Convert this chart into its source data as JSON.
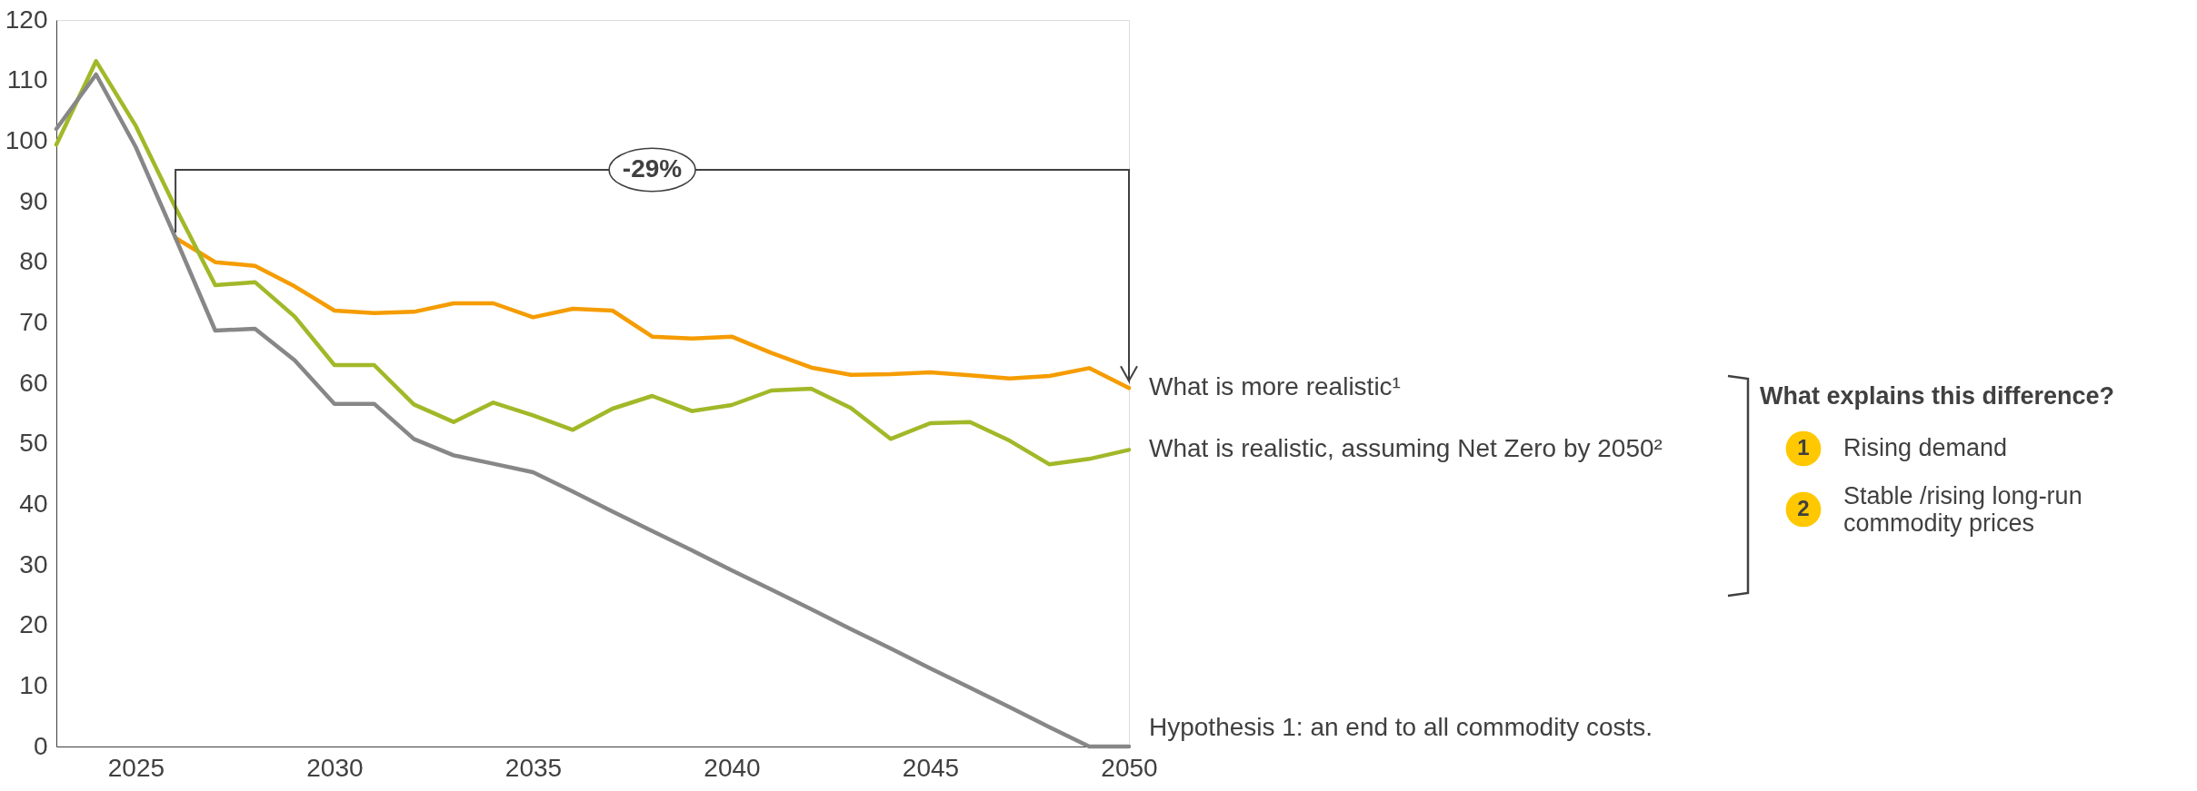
{
  "chart_data": {
    "type": "line",
    "xlim": [
      2023,
      2050
    ],
    "xticks": [
      2025,
      2030,
      2035,
      2040,
      2045,
      2050
    ],
    "ylim": [
      0,
      120
    ],
    "yticks": [
      0,
      10,
      20,
      30,
      40,
      50,
      60,
      70,
      80,
      90,
      100,
      110,
      120
    ],
    "grid": false,
    "legend": false,
    "marker": "none",
    "line_style": "solid",
    "series": [
      {
        "name": "What is more realistic¹",
        "color": "#f59c00",
        "x": [
          2026,
          2027,
          2028,
          2029,
          2030,
          2031,
          2032,
          2033,
          2034,
          2035,
          2036,
          2037,
          2038,
          2039,
          2040,
          2041,
          2042,
          2043,
          2044,
          2045,
          2046,
          2047,
          2048,
          2049,
          2050
        ],
        "values": [
          84,
          80,
          79.4,
          76,
          72,
          71.6,
          71.8,
          73.2,
          73.2,
          70.9,
          72.3,
          72,
          67.7,
          67.4,
          67.7,
          65,
          62.6,
          61.4,
          61.5,
          61.8,
          61.3,
          60.8,
          61.2,
          62.5,
          59.2
        ]
      },
      {
        "name": "What is realistic, assuming Net Zero by 2050²",
        "color": "#a2b828",
        "x": [
          2023,
          2024,
          2025,
          2026,
          2027,
          2028,
          2029,
          2030,
          2031,
          2032,
          2033,
          2034,
          2035,
          2036,
          2037,
          2038,
          2039,
          2040,
          2041,
          2042,
          2043,
          2044,
          2045,
          2046,
          2047,
          2048,
          2049,
          2050
        ],
        "values": [
          99.4,
          113.2,
          102.5,
          89,
          76.2,
          76.7,
          71,
          63,
          63,
          56.5,
          53.6,
          56.8,
          54.7,
          52.3,
          55.8,
          57.9,
          55.4,
          56.4,
          58.8,
          59.1,
          55.9,
          50.8,
          53.4,
          53.6,
          50.5,
          46.6,
          47.5,
          49
        ]
      },
      {
        "name": "Hypothesis 1: an end to all commodity costs.",
        "color": "#878787",
        "x": [
          2023,
          2024,
          2025,
          2026,
          2027,
          2028,
          2029,
          2030,
          2031,
          2032,
          2033,
          2034,
          2035,
          2036,
          2037,
          2038,
          2039,
          2040,
          2041,
          2042,
          2043,
          2044,
          2045,
          2046,
          2047,
          2048,
          2049,
          2050
        ],
        "values": [
          102,
          111,
          99,
          84,
          68.7,
          69,
          63.8,
          56.6,
          56.6,
          50.8,
          48.1,
          46.7,
          45.3,
          42.1,
          38.8,
          35.6,
          32.4,
          29.1,
          25.9,
          22.7,
          19.4,
          16.2,
          12.9,
          9.7,
          6.5,
          3.2,
          0,
          0
        ]
      }
    ],
    "annotations": [
      "-29%",
      "What explains this difference?",
      "1",
      "Rising demand",
      "2",
      "Stable /rising long-run commodity prices"
    ]
  }
}
